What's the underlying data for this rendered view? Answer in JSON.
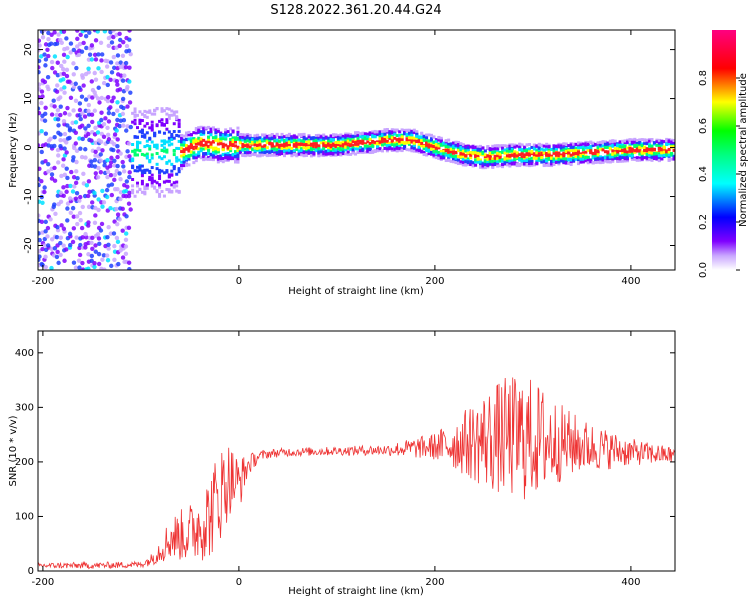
{
  "title": "S128.2022.361.20.44.G24",
  "chart_data": [
    {
      "type": "heatmap",
      "xlabel": "Height of straight line (km)",
      "ylabel": "Frequency (Hz)",
      "xlim": [
        -205,
        445
      ],
      "ylim": [
        -25,
        24
      ],
      "xticks": [
        -200,
        0,
        200,
        400
      ],
      "yticks": [
        -20,
        -10,
        0,
        10,
        20
      ],
      "colorbar": {
        "label": "Normalized spectral amplitude",
        "range": [
          0,
          1
        ],
        "ticks": [
          0.0,
          0.2,
          0.4,
          0.6,
          0.8
        ],
        "colormap": [
          "#ffffff",
          "#7f00ff",
          "#0000ff",
          "#00ffff",
          "#00ff00",
          "#ffff00",
          "#ff0000",
          "#ff0080"
        ]
      },
      "ridge": {
        "x": [
          -60,
          -40,
          -20,
          0,
          50,
          100,
          150,
          175,
          200,
          230,
          250,
          280,
          320,
          360,
          400,
          445
        ],
        "y": [
          -1,
          1,
          0.5,
          0.5,
          0.5,
          0.5,
          1.5,
          1.5,
          0,
          -1.5,
          -2,
          -1.5,
          -1.5,
          -1,
          -0.5,
          -0.5
        ]
      }
    },
    {
      "type": "line",
      "xlabel": "Height of straight line (km)",
      "ylabel": "SNR (10 * v/v)",
      "xlim": [
        -205,
        445
      ],
      "ylim": [
        0,
        440
      ],
      "xticks": [
        -200,
        0,
        200,
        400
      ],
      "yticks": [
        0,
        100,
        200,
        300,
        400
      ],
      "color": "#ee3333",
      "series": [
        {
          "x": [
            -205,
            -150,
            -100,
            -90,
            -70,
            -50,
            -30,
            -20,
            -10,
            0,
            10,
            20,
            30,
            50,
            100,
            150,
            200,
            230,
            250,
            270,
            290,
            310,
            330,
            350,
            380,
            400,
            420,
            445
          ],
          "y": [
            10,
            10,
            12,
            20,
            60,
            70,
            100,
            140,
            170,
            160,
            195,
            210,
            215,
            218,
            220,
            222,
            228,
            235,
            240,
            245,
            245,
            240,
            235,
            230,
            222,
            218,
            215,
            212
          ],
          "spread": [
            5,
            6,
            6,
            10,
            40,
            55,
            80,
            90,
            70,
            50,
            20,
            10,
            8,
            8,
            8,
            10,
            25,
            60,
            90,
            110,
            120,
            100,
            70,
            50,
            35,
            25,
            20,
            15
          ]
        }
      ]
    }
  ]
}
